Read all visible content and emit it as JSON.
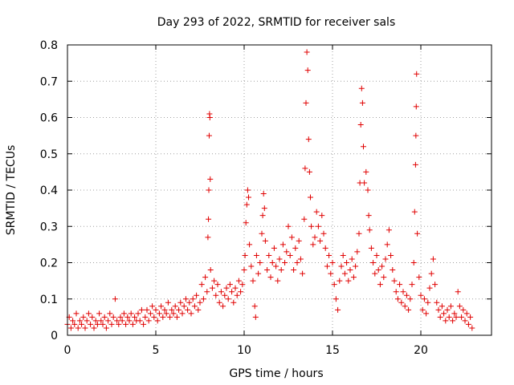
{
  "chart_data": {
    "type": "scatter",
    "title": "Day 293 of 2022, SRMTID for receiver sals",
    "xlabel": "GPS time / hours",
    "ylabel": "SRMTID / TECUs",
    "xlim": [
      0,
      24
    ],
    "ylim": [
      0,
      0.8
    ],
    "xticks": [
      0,
      5,
      10,
      15,
      20
    ],
    "yticks": [
      0,
      0.1,
      0.2,
      0.3,
      0.4,
      0.5,
      0.6,
      0.7,
      0.8
    ],
    "xtick_labels": [
      "0",
      "5",
      "10",
      "15",
      "20"
    ],
    "ytick_labels": [
      "0",
      "0.1",
      "0.2",
      "0.3",
      "0.4",
      "0.5",
      "0.6",
      "0.7",
      "0.8"
    ],
    "grid": true,
    "marker": "+",
    "color": "#e00000",
    "series": [
      {
        "name": "SRMTID",
        "points": [
          [
            0.0,
            0.03
          ],
          [
            0.1,
            0.05
          ],
          [
            0.2,
            0.02
          ],
          [
            0.3,
            0.04
          ],
          [
            0.4,
            0.03
          ],
          [
            0.5,
            0.06
          ],
          [
            0.6,
            0.02
          ],
          [
            0.7,
            0.04
          ],
          [
            0.8,
            0.03
          ],
          [
            0.9,
            0.05
          ],
          [
            1.0,
            0.02
          ],
          [
            1.1,
            0.04
          ],
          [
            1.2,
            0.06
          ],
          [
            1.3,
            0.03
          ],
          [
            1.4,
            0.05
          ],
          [
            1.5,
            0.02
          ],
          [
            1.6,
            0.04
          ],
          [
            1.7,
            0.03
          ],
          [
            1.8,
            0.06
          ],
          [
            1.9,
            0.04
          ],
          [
            2.0,
            0.03
          ],
          [
            2.1,
            0.05
          ],
          [
            2.2,
            0.02
          ],
          [
            2.3,
            0.04
          ],
          [
            2.4,
            0.06
          ],
          [
            2.5,
            0.03
          ],
          [
            2.6,
            0.05
          ],
          [
            2.7,
            0.1
          ],
          [
            2.8,
            0.04
          ],
          [
            2.9,
            0.03
          ],
          [
            3.0,
            0.05
          ],
          [
            3.1,
            0.04
          ],
          [
            3.2,
            0.06
          ],
          [
            3.3,
            0.03
          ],
          [
            3.4,
            0.05
          ],
          [
            3.5,
            0.04
          ],
          [
            3.6,
            0.06
          ],
          [
            3.7,
            0.03
          ],
          [
            3.8,
            0.05
          ],
          [
            3.9,
            0.04
          ],
          [
            4.0,
            0.06
          ],
          [
            4.1,
            0.04
          ],
          [
            4.2,
            0.07
          ],
          [
            4.3,
            0.03
          ],
          [
            4.4,
            0.05
          ],
          [
            4.5,
            0.07
          ],
          [
            4.6,
            0.04
          ],
          [
            4.7,
            0.06
          ],
          [
            4.8,
            0.08
          ],
          [
            4.9,
            0.05
          ],
          [
            5.0,
            0.07
          ],
          [
            5.1,
            0.04
          ],
          [
            5.2,
            0.06
          ],
          [
            5.3,
            0.08
          ],
          [
            5.4,
            0.05
          ],
          [
            5.5,
            0.07
          ],
          [
            5.6,
            0.06
          ],
          [
            5.7,
            0.09
          ],
          [
            5.8,
            0.05
          ],
          [
            5.9,
            0.07
          ],
          [
            6.0,
            0.06
          ],
          [
            6.1,
            0.08
          ],
          [
            6.2,
            0.05
          ],
          [
            6.3,
            0.07
          ],
          [
            6.4,
            0.09
          ],
          [
            6.5,
            0.06
          ],
          [
            6.6,
            0.08
          ],
          [
            6.7,
            0.1
          ],
          [
            6.8,
            0.07
          ],
          [
            6.9,
            0.09
          ],
          [
            7.0,
            0.06
          ],
          [
            7.1,
            0.1
          ],
          [
            7.2,
            0.08
          ],
          [
            7.3,
            0.11
          ],
          [
            7.4,
            0.07
          ],
          [
            7.5,
            0.09
          ],
          [
            7.6,
            0.14
          ],
          [
            7.7,
            0.1
          ],
          [
            7.8,
            0.16
          ],
          [
            7.9,
            0.12
          ],
          [
            7.95,
            0.27
          ],
          [
            7.98,
            0.32
          ],
          [
            8.0,
            0.4
          ],
          [
            8.02,
            0.55
          ],
          [
            8.04,
            0.61
          ],
          [
            8.06,
            0.6
          ],
          [
            8.08,
            0.43
          ],
          [
            8.1,
            0.18
          ],
          [
            8.2,
            0.13
          ],
          [
            8.3,
            0.15
          ],
          [
            8.4,
            0.11
          ],
          [
            8.5,
            0.14
          ],
          [
            8.6,
            0.09
          ],
          [
            8.7,
            0.12
          ],
          [
            8.8,
            0.08
          ],
          [
            8.9,
            0.11
          ],
          [
            9.0,
            0.13
          ],
          [
            9.1,
            0.1
          ],
          [
            9.2,
            0.14
          ],
          [
            9.3,
            0.12
          ],
          [
            9.4,
            0.09
          ],
          [
            9.5,
            0.13
          ],
          [
            9.6,
            0.11
          ],
          [
            9.7,
            0.15
          ],
          [
            9.8,
            0.12
          ],
          [
            9.9,
            0.14
          ],
          [
            10.0,
            0.18
          ],
          [
            10.05,
            0.22
          ],
          [
            10.1,
            0.31
          ],
          [
            10.15,
            0.36
          ],
          [
            10.2,
            0.4
          ],
          [
            10.25,
            0.38
          ],
          [
            10.3,
            0.25
          ],
          [
            10.4,
            0.19
          ],
          [
            10.5,
            0.15
          ],
          [
            10.6,
            0.08
          ],
          [
            10.65,
            0.05
          ],
          [
            10.7,
            0.22
          ],
          [
            10.8,
            0.17
          ],
          [
            10.9,
            0.2
          ],
          [
            11.0,
            0.28
          ],
          [
            11.05,
            0.33
          ],
          [
            11.1,
            0.39
          ],
          [
            11.15,
            0.35
          ],
          [
            11.2,
            0.26
          ],
          [
            11.3,
            0.18
          ],
          [
            11.4,
            0.22
          ],
          [
            11.5,
            0.16
          ],
          [
            11.6,
            0.2
          ],
          [
            11.7,
            0.24
          ],
          [
            11.8,
            0.19
          ],
          [
            11.9,
            0.15
          ],
          [
            12.0,
            0.21
          ],
          [
            12.1,
            0.18
          ],
          [
            12.2,
            0.25
          ],
          [
            12.3,
            0.2
          ],
          [
            12.4,
            0.23
          ],
          [
            12.5,
            0.3
          ],
          [
            12.6,
            0.22
          ],
          [
            12.7,
            0.27
          ],
          [
            12.8,
            0.18
          ],
          [
            12.9,
            0.24
          ],
          [
            13.0,
            0.2
          ],
          [
            13.1,
            0.26
          ],
          [
            13.2,
            0.21
          ],
          [
            13.3,
            0.17
          ],
          [
            13.4,
            0.32
          ],
          [
            13.45,
            0.46
          ],
          [
            13.5,
            0.64
          ],
          [
            13.55,
            0.78
          ],
          [
            13.6,
            0.73
          ],
          [
            13.65,
            0.54
          ],
          [
            13.7,
            0.45
          ],
          [
            13.75,
            0.38
          ],
          [
            13.8,
            0.3
          ],
          [
            13.9,
            0.25
          ],
          [
            14.0,
            0.27
          ],
          [
            14.1,
            0.34
          ],
          [
            14.2,
            0.3
          ],
          [
            14.3,
            0.26
          ],
          [
            14.4,
            0.33
          ],
          [
            14.5,
            0.28
          ],
          [
            14.6,
            0.24
          ],
          [
            14.7,
            0.19
          ],
          [
            14.8,
            0.22
          ],
          [
            14.9,
            0.17
          ],
          [
            15.0,
            0.2
          ],
          [
            15.1,
            0.14
          ],
          [
            15.2,
            0.1
          ],
          [
            15.3,
            0.07
          ],
          [
            15.4,
            0.15
          ],
          [
            15.5,
            0.19
          ],
          [
            15.6,
            0.22
          ],
          [
            15.7,
            0.17
          ],
          [
            15.8,
            0.2
          ],
          [
            15.9,
            0.15
          ],
          [
            16.0,
            0.18
          ],
          [
            16.1,
            0.21
          ],
          [
            16.2,
            0.16
          ],
          [
            16.3,
            0.19
          ],
          [
            16.4,
            0.23
          ],
          [
            16.5,
            0.28
          ],
          [
            16.55,
            0.42
          ],
          [
            16.6,
            0.58
          ],
          [
            16.65,
            0.68
          ],
          [
            16.7,
            0.64
          ],
          [
            16.75,
            0.52
          ],
          [
            16.8,
            0.42
          ],
          [
            16.9,
            0.45
          ],
          [
            17.0,
            0.4
          ],
          [
            17.05,
            0.33
          ],
          [
            17.1,
            0.29
          ],
          [
            17.2,
            0.24
          ],
          [
            17.3,
            0.2
          ],
          [
            17.4,
            0.17
          ],
          [
            17.5,
            0.22
          ],
          [
            17.6,
            0.18
          ],
          [
            17.7,
            0.14
          ],
          [
            17.8,
            0.19
          ],
          [
            17.9,
            0.16
          ],
          [
            18.0,
            0.21
          ],
          [
            18.1,
            0.25
          ],
          [
            18.2,
            0.29
          ],
          [
            18.3,
            0.22
          ],
          [
            18.4,
            0.18
          ],
          [
            18.5,
            0.15
          ],
          [
            18.6,
            0.12
          ],
          [
            18.7,
            0.1
          ],
          [
            18.8,
            0.14
          ],
          [
            18.9,
            0.09
          ],
          [
            19.0,
            0.12
          ],
          [
            19.1,
            0.08
          ],
          [
            19.2,
            0.11
          ],
          [
            19.3,
            0.07
          ],
          [
            19.4,
            0.1
          ],
          [
            19.5,
            0.14
          ],
          [
            19.6,
            0.2
          ],
          [
            19.65,
            0.34
          ],
          [
            19.7,
            0.47
          ],
          [
            19.72,
            0.55
          ],
          [
            19.74,
            0.63
          ],
          [
            19.76,
            0.72
          ],
          [
            19.8,
            0.28
          ],
          [
            19.9,
            0.16
          ],
          [
            20.0,
            0.11
          ],
          [
            20.1,
            0.07
          ],
          [
            20.2,
            0.1
          ],
          [
            20.3,
            0.06
          ],
          [
            20.4,
            0.09
          ],
          [
            20.5,
            0.13
          ],
          [
            20.6,
            0.17
          ],
          [
            20.7,
            0.21
          ],
          [
            20.8,
            0.14
          ],
          [
            20.9,
            0.09
          ],
          [
            21.0,
            0.07
          ],
          [
            21.1,
            0.05
          ],
          [
            21.2,
            0.08
          ],
          [
            21.3,
            0.06
          ],
          [
            21.4,
            0.04
          ],
          [
            21.5,
            0.07
          ],
          [
            21.6,
            0.05
          ],
          [
            21.7,
            0.08
          ],
          [
            21.8,
            0.04
          ],
          [
            21.9,
            0.06
          ],
          [
            22.0,
            0.05
          ],
          [
            22.1,
            0.12
          ],
          [
            22.2,
            0.08
          ],
          [
            22.3,
            0.05
          ],
          [
            22.4,
            0.07
          ],
          [
            22.5,
            0.04
          ],
          [
            22.6,
            0.06
          ],
          [
            22.7,
            0.03
          ],
          [
            22.8,
            0.05
          ],
          [
            22.9,
            0.02
          ]
        ]
      }
    ]
  }
}
